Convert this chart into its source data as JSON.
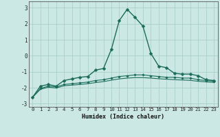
{
  "xlabel": "Humidex (Indice chaleur)",
  "background_color": "#cce8e4",
  "grid_color": "#aacfcc",
  "line_color": "#1a6b5a",
  "xlim": [
    -0.5,
    23.5
  ],
  "ylim": [
    -3.2,
    3.4
  ],
  "xticks": [
    0,
    1,
    2,
    3,
    4,
    5,
    6,
    7,
    8,
    9,
    10,
    11,
    12,
    13,
    14,
    15,
    16,
    17,
    18,
    19,
    20,
    21,
    22,
    23
  ],
  "yticks": [
    -3,
    -2,
    -1,
    0,
    1,
    2,
    3
  ],
  "series": [
    {
      "x": [
        0,
        1,
        2,
        3,
        4,
        5,
        6,
        7,
        8,
        9,
        10,
        11,
        12,
        13,
        14,
        15,
        16,
        17,
        18,
        19,
        20,
        21,
        22,
        23
      ],
      "y": [
        -2.6,
        -1.9,
        -1.8,
        -1.9,
        -1.55,
        -1.45,
        -1.35,
        -1.3,
        -0.9,
        -0.8,
        0.4,
        2.2,
        2.9,
        2.4,
        1.85,
        0.15,
        -0.65,
        -0.75,
        -1.1,
        -1.15,
        -1.15,
        -1.25,
        -1.5,
        -1.55
      ],
      "marker": "D",
      "markersize": 2.5,
      "linewidth": 1.0
    },
    {
      "x": [
        0,
        1,
        2,
        3,
        4,
        5,
        6,
        7,
        8,
        9,
        10,
        11,
        12,
        13,
        14,
        15,
        16,
        17,
        18,
        19,
        20,
        21,
        22,
        23
      ],
      "y": [
        -2.6,
        -2.05,
        -1.9,
        -1.95,
        -1.8,
        -1.75,
        -1.7,
        -1.65,
        -1.55,
        -1.5,
        -1.4,
        -1.3,
        -1.25,
        -1.2,
        -1.2,
        -1.25,
        -1.3,
        -1.35,
        -1.35,
        -1.4,
        -1.4,
        -1.5,
        -1.55,
        -1.6
      ],
      "marker": "D",
      "markersize": 1.8,
      "linewidth": 0.8
    },
    {
      "x": [
        0,
        1,
        2,
        3,
        4,
        5,
        6,
        7,
        8,
        9,
        10,
        11,
        12,
        13,
        14,
        15,
        16,
        17,
        18,
        19,
        20,
        21,
        22,
        23
      ],
      "y": [
        -2.6,
        -2.1,
        -1.97,
        -2.02,
        -1.88,
        -1.84,
        -1.8,
        -1.75,
        -1.68,
        -1.62,
        -1.53,
        -1.45,
        -1.4,
        -1.37,
        -1.37,
        -1.4,
        -1.44,
        -1.47,
        -1.5,
        -1.52,
        -1.54,
        -1.6,
        -1.64,
        -1.67
      ],
      "marker": null,
      "markersize": 0,
      "linewidth": 0.8
    }
  ]
}
